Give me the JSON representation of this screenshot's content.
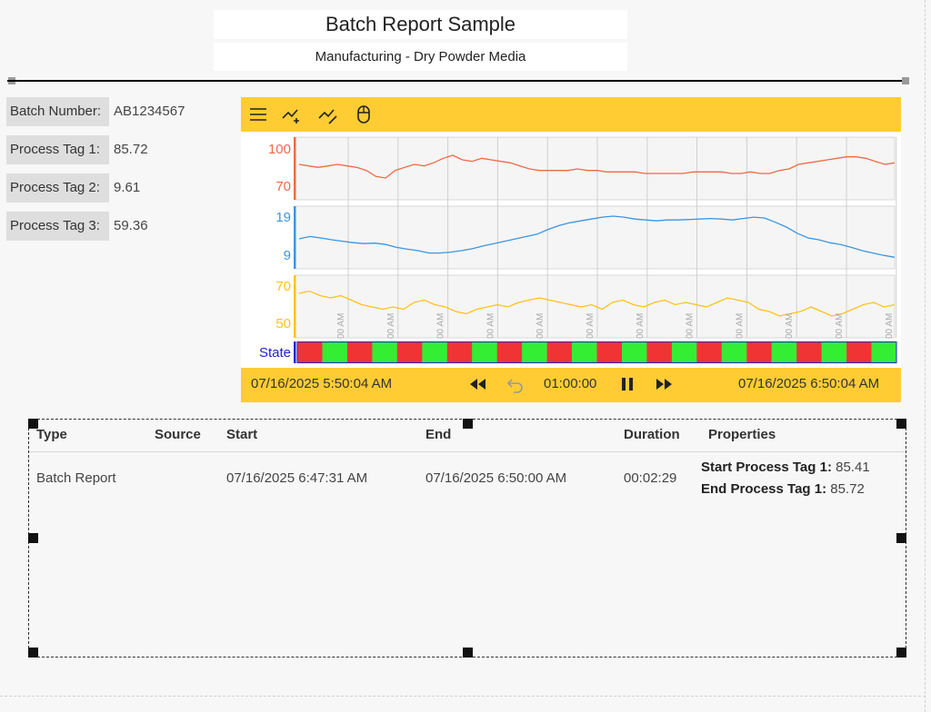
{
  "report": {
    "title": "Batch Report Sample",
    "subtitle": "Manufacturing - Dry Powder Media"
  },
  "batch_info": [
    {
      "label": "Batch Number:",
      "value": "AB1234567"
    },
    {
      "label": "Process Tag 1:",
      "value": "85.72"
    },
    {
      "label": "Process Tag 2:",
      "value": "9.61"
    },
    {
      "label": "Process Tag 3:",
      "value": "59.36"
    }
  ],
  "trend": {
    "toolbar": [
      {
        "name": "menu-icon"
      },
      {
        "name": "add-pen-icon"
      },
      {
        "name": "remove-pen-icon"
      },
      {
        "name": "mouse-icon"
      }
    ],
    "start_time": "07/16/2025  5:50:04 AM",
    "end_time": "07/16/2025  6:50:04 AM",
    "duration": "01:00:00",
    "state_label": "State",
    "x_tick_labels": [
      "00 AM",
      "00 AM",
      "00 AM",
      "00 AM",
      "00 AM",
      "00 AM",
      "00 AM",
      "00 AM",
      "00 AM",
      "00 AM",
      "00 AM",
      "00 AM"
    ],
    "colors": {
      "background": "#ffcc33",
      "pen1": "#ee6a47",
      "pen2": "#3d95e0",
      "pen3": "#ffc21a",
      "state_axis": "#2222cc",
      "state_on": "#33ee33",
      "state_off": "#f03434"
    }
  },
  "chart_data": {
    "type": "line",
    "x_range": [
      "5:50:04 AM",
      "6:50:04 AM"
    ],
    "series": [
      {
        "ticks": [
          "100",
          "70"
        ],
        "ylim": [
          70,
          100
        ],
        "values": [
          88,
          87,
          86,
          87,
          88,
          87,
          86,
          84,
          80,
          79,
          84,
          86,
          88,
          87,
          89,
          92,
          94,
          91,
          90,
          92,
          91,
          90,
          89,
          87,
          85,
          84,
          84,
          84,
          84,
          85,
          84,
          84,
          83,
          83,
          83,
          83,
          82,
          82,
          82,
          82,
          82,
          83,
          83,
          83,
          83,
          82,
          82,
          83,
          82,
          82,
          84,
          85,
          88,
          89,
          90,
          91,
          92,
          93,
          93,
          92,
          90,
          88,
          89
        ]
      },
      {
        "ticks": [
          "19",
          "9"
        ],
        "ylim": [
          9,
          19
        ],
        "values": [
          14,
          14.5,
          14.2,
          13.8,
          13.5,
          13.2,
          13,
          13.1,
          12.8,
          12.2,
          11.8,
          11.5,
          11,
          11,
          11.2,
          11.5,
          11.9,
          12.5,
          13,
          13.5,
          14,
          14.5,
          15,
          16,
          16.8,
          17.4,
          17.8,
          18.2,
          18.6,
          18.8,
          18.6,
          18.2,
          18,
          17.8,
          18,
          18,
          18.1,
          18.2,
          18.3,
          18.2,
          18,
          18.3,
          18.6,
          18.4,
          17.5,
          16.5,
          15.2,
          14.2,
          13.8,
          13.2,
          12.8,
          12.2,
          11.5,
          11,
          10.5,
          10.1
        ]
      },
      {
        "ticks": [
          "70",
          "50"
        ],
        "ylim": [
          50,
          70
        ],
        "values": [
          66,
          67,
          65,
          64,
          65,
          63,
          61,
          60,
          59,
          60,
          59,
          62,
          63,
          61,
          60,
          58,
          57,
          59,
          60,
          61,
          60,
          62,
          63,
          64,
          63,
          62,
          61,
          60,
          61,
          59,
          62,
          63,
          61,
          60,
          62,
          63,
          61,
          62,
          61,
          60,
          62,
          64,
          63,
          62,
          59,
          58,
          56,
          57,
          58,
          60,
          58,
          56,
          57,
          59,
          61,
          62,
          60,
          61
        ]
      }
    ],
    "state": [
      0,
      1,
      0,
      1,
      0,
      1,
      0,
      1,
      0,
      1,
      0,
      1,
      0,
      1,
      0,
      1,
      0,
      1,
      0,
      1,
      0,
      1,
      0,
      1
    ]
  },
  "events": {
    "headers": [
      "Type",
      "Source",
      "Start",
      "End",
      "Duration",
      "Properties"
    ],
    "rows": [
      {
        "type": "Batch Report",
        "source": "",
        "start": "07/16/2025 6:47:31 AM",
        "end": "07/16/2025 6:50:00 AM",
        "duration": "00:02:29",
        "properties": [
          {
            "name": "Start Process Tag 1:",
            "value": "85.41"
          },
          {
            "name": "End Process Tag 1:",
            "value": "85.72"
          }
        ]
      }
    ]
  }
}
